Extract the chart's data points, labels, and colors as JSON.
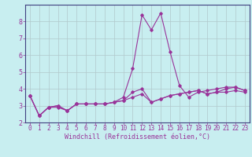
{
  "xlabel": "Windchill (Refroidissement éolien,°C)",
  "bg_color": "#c8eef0",
  "grid_color": "#b0c8cc",
  "line_color": "#993399",
  "border_color": "#404080",
  "xlim": [
    -0.5,
    23.5
  ],
  "ylim": [
    2,
    9
  ],
  "yticks": [
    2,
    3,
    4,
    5,
    6,
    7,
    8
  ],
  "xticks": [
    0,
    1,
    2,
    3,
    4,
    5,
    6,
    7,
    8,
    9,
    10,
    11,
    12,
    13,
    14,
    15,
    16,
    17,
    18,
    19,
    20,
    21,
    22,
    23
  ],
  "line1_x": [
    0,
    1,
    2,
    3,
    4,
    5,
    6,
    7,
    8,
    9,
    10,
    11,
    12,
    13,
    14,
    15,
    16,
    17,
    18,
    19,
    20,
    21,
    22,
    23
  ],
  "line1_y": [
    3.6,
    2.4,
    2.9,
    2.9,
    2.7,
    3.1,
    3.1,
    3.1,
    3.1,
    3.2,
    3.3,
    3.5,
    3.7,
    3.2,
    3.4,
    3.6,
    3.7,
    3.8,
    3.9,
    3.7,
    3.8,
    3.8,
    3.9,
    3.8
  ],
  "line2_x": [
    0,
    1,
    2,
    3,
    4,
    5,
    6,
    7,
    8,
    9,
    10,
    11,
    12,
    13,
    14,
    15,
    16,
    17,
    18,
    19,
    20,
    21,
    22,
    23
  ],
  "line2_y": [
    3.6,
    2.4,
    2.9,
    3.0,
    2.7,
    3.1,
    3.1,
    3.1,
    3.1,
    3.2,
    3.5,
    5.2,
    8.4,
    7.5,
    8.5,
    6.2,
    4.2,
    3.5,
    3.8,
    3.9,
    4.0,
    4.1,
    4.1,
    3.9
  ],
  "line3_x": [
    0,
    1,
    2,
    3,
    4,
    5,
    6,
    7,
    8,
    9,
    10,
    11,
    12,
    13,
    14,
    15,
    16,
    17,
    18,
    19,
    20,
    21,
    22,
    23
  ],
  "line3_y": [
    3.6,
    2.4,
    2.9,
    3.0,
    2.7,
    3.1,
    3.1,
    3.1,
    3.1,
    3.2,
    3.3,
    3.8,
    4.0,
    3.2,
    3.4,
    3.6,
    3.7,
    3.8,
    3.9,
    3.7,
    3.8,
    4.0,
    4.1,
    3.9
  ],
  "xlabel_fontsize": 6,
  "tick_fontsize": 5.5
}
